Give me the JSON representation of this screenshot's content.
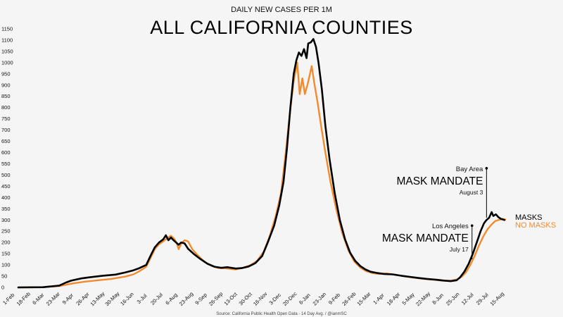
{
  "chart_data": {
    "type": "line",
    "subtitle": "DAILY NEW CASES PER 1M",
    "title": "ALL CALIFORNIA COUNTIES",
    "ylim": [
      0,
      1150
    ],
    "yticks": [
      0,
      50,
      100,
      150,
      200,
      250,
      300,
      350,
      400,
      450,
      500,
      550,
      600,
      650,
      700,
      750,
      800,
      850,
      900,
      950,
      1000,
      1050,
      1100,
      1150
    ],
    "xrange": [
      "2020-02-01",
      "2021-08-25"
    ],
    "xticks": [
      "1-Feb",
      "18-Feb",
      "6-Mar",
      "23-Mar",
      "9-Apr",
      "26-Apr",
      "13-May",
      "30-May",
      "16-Jun",
      "3-Jul",
      "20-Jul",
      "6-Aug",
      "23-Aug",
      "9-Sep",
      "26-Sep",
      "13-Oct",
      "30-Oct",
      "16-Nov",
      "3-Dec",
      "20-Dec",
      "6-Jan",
      "23-Jan",
      "9-Feb",
      "26-Feb",
      "15-Mar",
      "1-Apr",
      "18-Apr",
      "5-May",
      "22-May",
      "8-Jun",
      "25-Jun",
      "12-Jul",
      "29-Jul",
      "15-Aug"
    ],
    "grid": false,
    "series": [
      {
        "name": "MASKS",
        "color": "#000000",
        "points": [
          [
            "2020-02-01",
            0
          ],
          [
            "2020-03-01",
            1
          ],
          [
            "2020-03-20",
            8
          ],
          [
            "2020-03-28",
            22
          ],
          [
            "2020-04-03",
            30
          ],
          [
            "2020-04-15",
            40
          ],
          [
            "2020-04-25",
            45
          ],
          [
            "2020-05-10",
            52
          ],
          [
            "2020-05-25",
            57
          ],
          [
            "2020-06-05",
            66
          ],
          [
            "2020-06-15",
            76
          ],
          [
            "2020-06-22",
            86
          ],
          [
            "2020-06-30",
            100
          ],
          [
            "2020-07-05",
            140
          ],
          [
            "2020-07-10",
            178
          ],
          [
            "2020-07-15",
            200
          ],
          [
            "2020-07-20",
            214
          ],
          [
            "2020-07-23",
            232
          ],
          [
            "2020-07-26",
            210
          ],
          [
            "2020-07-29",
            222
          ],
          [
            "2020-08-01",
            210
          ],
          [
            "2020-08-04",
            200
          ],
          [
            "2020-08-07",
            190
          ],
          [
            "2020-08-10",
            200
          ],
          [
            "2020-08-14",
            196
          ],
          [
            "2020-08-18",
            172
          ],
          [
            "2020-08-25",
            148
          ],
          [
            "2020-09-02",
            125
          ],
          [
            "2020-09-10",
            105
          ],
          [
            "2020-09-18",
            92
          ],
          [
            "2020-09-26",
            87
          ],
          [
            "2020-10-03",
            90
          ],
          [
            "2020-10-13",
            84
          ],
          [
            "2020-10-20",
            86
          ],
          [
            "2020-10-28",
            93
          ],
          [
            "2020-11-05",
            108
          ],
          [
            "2020-11-13",
            140
          ],
          [
            "2020-11-20",
            205
          ],
          [
            "2020-11-27",
            275
          ],
          [
            "2020-12-03",
            365
          ],
          [
            "2020-12-08",
            470
          ],
          [
            "2020-12-12",
            620
          ],
          [
            "2020-12-16",
            800
          ],
          [
            "2020-12-20",
            950
          ],
          [
            "2020-12-23",
            1010
          ],
          [
            "2020-12-26",
            1045
          ],
          [
            "2020-12-29",
            1030
          ],
          [
            "2021-01-01",
            1060
          ],
          [
            "2021-01-04",
            1020
          ],
          [
            "2021-01-06",
            1085
          ],
          [
            "2021-01-09",
            1090
          ],
          [
            "2021-01-12",
            1105
          ],
          [
            "2021-01-15",
            1070
          ],
          [
            "2021-01-18",
            1000
          ],
          [
            "2021-01-22",
            880
          ],
          [
            "2021-01-26",
            720
          ],
          [
            "2021-01-31",
            570
          ],
          [
            "2021-02-06",
            420
          ],
          [
            "2021-02-12",
            300
          ],
          [
            "2021-02-18",
            215
          ],
          [
            "2021-02-24",
            155
          ],
          [
            "2021-03-02",
            118
          ],
          [
            "2021-03-08",
            95
          ],
          [
            "2021-03-14",
            80
          ],
          [
            "2021-03-20",
            70
          ],
          [
            "2021-03-28",
            64
          ],
          [
            "2021-04-05",
            60
          ],
          [
            "2021-04-15",
            58
          ],
          [
            "2021-04-25",
            52
          ],
          [
            "2021-05-05",
            47
          ],
          [
            "2021-05-15",
            42
          ],
          [
            "2021-05-25",
            38
          ],
          [
            "2021-06-05",
            34
          ],
          [
            "2021-06-15",
            30
          ],
          [
            "2021-06-22",
            28
          ],
          [
            "2021-06-29",
            32
          ],
          [
            "2021-07-03",
            45
          ],
          [
            "2021-07-08",
            70
          ],
          [
            "2021-07-13",
            105
          ],
          [
            "2021-07-18",
            150
          ],
          [
            "2021-07-23",
            205
          ],
          [
            "2021-07-27",
            250
          ],
          [
            "2021-07-31",
            285
          ],
          [
            "2021-08-03",
            300
          ],
          [
            "2021-08-06",
            310
          ],
          [
            "2021-08-09",
            335
          ],
          [
            "2021-08-11",
            318
          ],
          [
            "2021-08-14",
            325
          ],
          [
            "2021-08-17",
            312
          ],
          [
            "2021-08-20",
            305
          ],
          [
            "2021-08-24",
            300
          ]
        ]
      },
      {
        "name": "NO MASKS",
        "color": "#f28a2e",
        "points": [
          [
            "2020-02-01",
            0
          ],
          [
            "2020-03-01",
            1
          ],
          [
            "2020-03-20",
            6
          ],
          [
            "2020-03-28",
            12
          ],
          [
            "2020-04-05",
            18
          ],
          [
            "2020-04-20",
            26
          ],
          [
            "2020-05-05",
            32
          ],
          [
            "2020-05-20",
            38
          ],
          [
            "2020-06-05",
            48
          ],
          [
            "2020-06-15",
            58
          ],
          [
            "2020-06-22",
            72
          ],
          [
            "2020-06-30",
            92
          ],
          [
            "2020-07-05",
            130
          ],
          [
            "2020-07-10",
            170
          ],
          [
            "2020-07-15",
            192
          ],
          [
            "2020-07-20",
            205
          ],
          [
            "2020-07-25",
            220
          ],
          [
            "2020-07-29",
            230
          ],
          [
            "2020-08-02",
            215
          ],
          [
            "2020-08-05",
            195
          ],
          [
            "2020-08-07",
            170
          ],
          [
            "2020-08-10",
            195
          ],
          [
            "2020-08-14",
            210
          ],
          [
            "2020-08-18",
            205
          ],
          [
            "2020-08-23",
            170
          ],
          [
            "2020-08-30",
            140
          ],
          [
            "2020-09-07",
            112
          ],
          [
            "2020-09-15",
            95
          ],
          [
            "2020-09-23",
            86
          ],
          [
            "2020-10-01",
            85
          ],
          [
            "2020-10-13",
            80
          ],
          [
            "2020-10-22",
            88
          ],
          [
            "2020-10-30",
            98
          ],
          [
            "2020-11-07",
            118
          ],
          [
            "2020-11-15",
            160
          ],
          [
            "2020-11-22",
            230
          ],
          [
            "2020-11-29",
            320
          ],
          [
            "2020-12-05",
            420
          ],
          [
            "2020-12-10",
            580
          ],
          [
            "2020-12-15",
            760
          ],
          [
            "2020-12-20",
            920
          ],
          [
            "2020-12-24",
            1000
          ],
          [
            "2020-12-27",
            860
          ],
          [
            "2020-12-30",
            930
          ],
          [
            "2021-01-02",
            860
          ],
          [
            "2021-01-05",
            900
          ],
          [
            "2021-01-08",
            950
          ],
          [
            "2021-01-10",
            985
          ],
          [
            "2021-01-13",
            910
          ],
          [
            "2021-01-17",
            820
          ],
          [
            "2021-01-21",
            720
          ],
          [
            "2021-01-26",
            600
          ],
          [
            "2021-02-01",
            470
          ],
          [
            "2021-02-08",
            345
          ],
          [
            "2021-02-15",
            240
          ],
          [
            "2021-02-22",
            165
          ],
          [
            "2021-03-01",
            115
          ],
          [
            "2021-03-08",
            88
          ],
          [
            "2021-03-15",
            72
          ],
          [
            "2021-03-22",
            64
          ],
          [
            "2021-03-30",
            60
          ],
          [
            "2021-04-08",
            62
          ],
          [
            "2021-04-20",
            55
          ],
          [
            "2021-05-01",
            48
          ],
          [
            "2021-05-12",
            42
          ],
          [
            "2021-05-22",
            38
          ],
          [
            "2021-06-02",
            34
          ],
          [
            "2021-06-12",
            30
          ],
          [
            "2021-06-22",
            30
          ],
          [
            "2021-06-30",
            36
          ],
          [
            "2021-07-05",
            48
          ],
          [
            "2021-07-10",
            68
          ],
          [
            "2021-07-15",
            100
          ],
          [
            "2021-07-20",
            140
          ],
          [
            "2021-07-25",
            185
          ],
          [
            "2021-07-30",
            225
          ],
          [
            "2021-08-04",
            258
          ],
          [
            "2021-08-09",
            280
          ],
          [
            "2021-08-13",
            295
          ],
          [
            "2021-08-17",
            300
          ],
          [
            "2021-08-22",
            305
          ],
          [
            "2021-08-25",
            302
          ]
        ]
      }
    ],
    "annotations": [
      {
        "name": "bay-area",
        "location": "Bay Area",
        "label": "MASK MANDATE",
        "date_label": "August 3",
        "date": "2021-08-03",
        "value": 530
      },
      {
        "name": "los-angeles",
        "location": "Los Angeles",
        "label": "MASK MANDATE",
        "date_label": "July 17",
        "date": "2021-07-17",
        "value": 275
      }
    ],
    "legend_placement": "right end of lines",
    "source": "Source: California Public Health Open Data - 14 Day Avg. / @ianmSC"
  }
}
